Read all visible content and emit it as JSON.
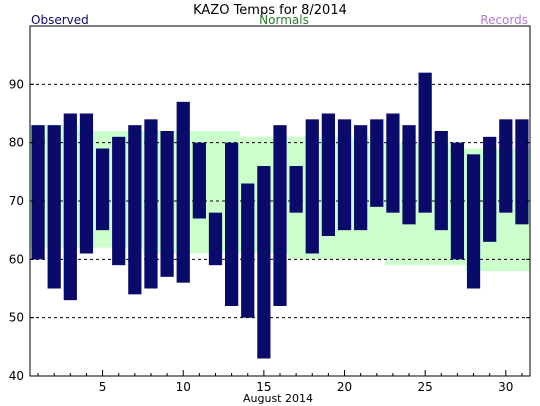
{
  "header": {
    "title": "KAZO Temps for 8/2014",
    "observed_label": "Observed",
    "normals_label": "Normals",
    "records_label": "Records"
  },
  "colors": {
    "observed": "#0a0a6b",
    "normals_band": "#ccffcc",
    "normals_text": "#2a7a2a",
    "records_text": "#b07ad0",
    "grid": "#000000"
  },
  "chart_data": {
    "type": "bar",
    "title": "KAZO Temps for 8/2014",
    "xlabel": "August 2014",
    "ylabel": "",
    "x": [
      1,
      2,
      3,
      4,
      5,
      6,
      7,
      8,
      9,
      10,
      11,
      12,
      13,
      14,
      15,
      16,
      17,
      18,
      19,
      20,
      21,
      22,
      23,
      24,
      25,
      26,
      27,
      28,
      29,
      30,
      31
    ],
    "xlim": [
      0.5,
      31.5
    ],
    "ylim": [
      40,
      100
    ],
    "yticks": [
      40,
      50,
      60,
      70,
      80,
      90
    ],
    "xticks": [
      5,
      10,
      15,
      20,
      25,
      30
    ],
    "grid_y": [
      50,
      60,
      70,
      80,
      90
    ],
    "series": [
      {
        "name": "Observed",
        "type": "floating_bar",
        "high": [
          83,
          83,
          85,
          85,
          79,
          81,
          83,
          84,
          82,
          87,
          80,
          68,
          80,
          73,
          76,
          83,
          76,
          84,
          85,
          84,
          83,
          84,
          85,
          83,
          92,
          82,
          80,
          78,
          81,
          84,
          84
        ],
        "low": [
          60,
          55,
          53,
          61,
          65,
          59,
          54,
          55,
          57,
          56,
          67,
          59,
          52,
          50,
          43,
          52,
          68,
          61,
          64,
          65,
          65,
          69,
          68,
          66,
          68,
          65,
          60,
          55,
          63,
          68,
          66
        ]
      },
      {
        "name": "Normals",
        "type": "band",
        "high": [
          83,
          83,
          83,
          82,
          82,
          82,
          82,
          82,
          82,
          82,
          82,
          82,
          82,
          81,
          81,
          81,
          81,
          81,
          81,
          81,
          81,
          80,
          80,
          80,
          80,
          80,
          79,
          79,
          79,
          79,
          79
        ],
        "low": [
          62,
          62,
          62,
          62,
          62,
          62,
          62,
          61,
          61,
          61,
          61,
          61,
          61,
          61,
          61,
          61,
          60,
          60,
          60,
          60,
          60,
          60,
          59,
          59,
          59,
          59,
          59,
          58,
          58,
          58,
          58
        ]
      }
    ]
  }
}
